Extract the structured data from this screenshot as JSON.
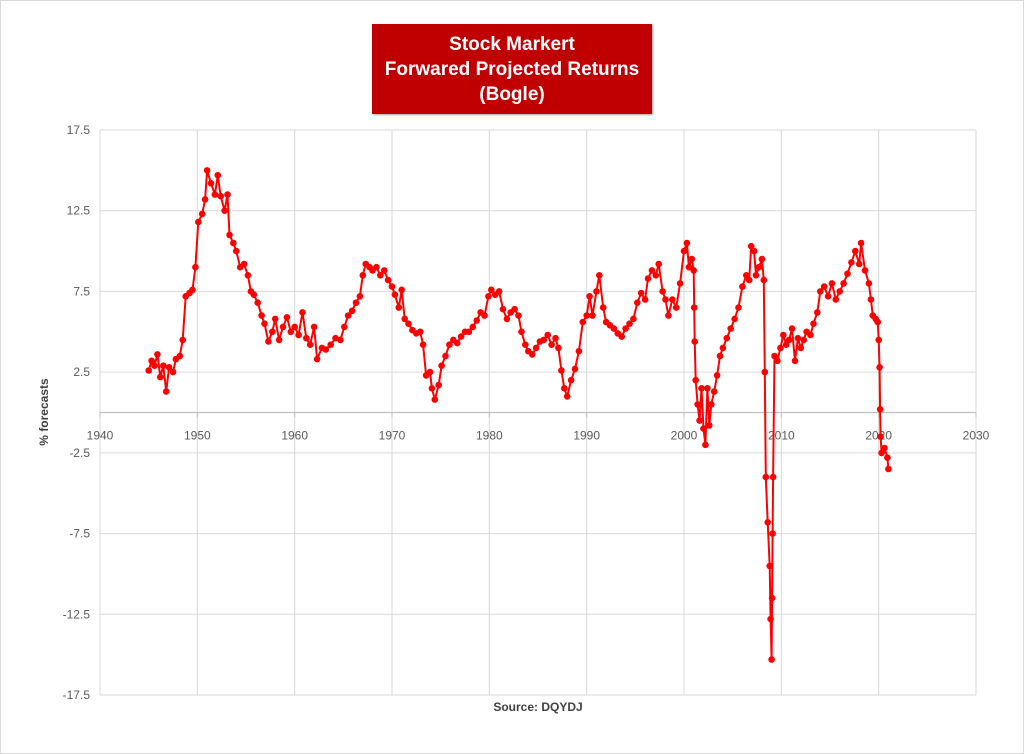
{
  "chart_data": {
    "type": "line",
    "title_lines": [
      "Stock Markert",
      "Forwared Projected Returns",
      "(Bogle)"
    ],
    "xlabel": "Source: DQYDJ",
    "ylabel": "% forecasts",
    "xlim": [
      1940,
      2030
    ],
    "ylim": [
      -17.5,
      17.5
    ],
    "xticks": [
      1940,
      1950,
      1960,
      1970,
      1980,
      1990,
      2000,
      2010,
      2020,
      2030
    ],
    "yticks": [
      -17.5,
      -12.5,
      -7.5,
      -2.5,
      2.5,
      7.5,
      12.5,
      17.5
    ],
    "grid": true,
    "series": [
      {
        "color": "#ff0000",
        "points": [
          [
            1945.0,
            2.6
          ],
          [
            1945.3,
            3.2
          ],
          [
            1945.6,
            2.9
          ],
          [
            1945.9,
            3.6
          ],
          [
            1946.2,
            2.2
          ],
          [
            1946.5,
            2.9
          ],
          [
            1946.8,
            1.3
          ],
          [
            1947.1,
            2.8
          ],
          [
            1947.5,
            2.5
          ],
          [
            1947.8,
            3.3
          ],
          [
            1948.2,
            3.5
          ],
          [
            1948.5,
            4.5
          ],
          [
            1948.8,
            7.2
          ],
          [
            1949.2,
            7.4
          ],
          [
            1949.5,
            7.6
          ],
          [
            1949.8,
            9.0
          ],
          [
            1950.1,
            11.8
          ],
          [
            1950.5,
            12.3
          ],
          [
            1950.8,
            13.2
          ],
          [
            1951.0,
            15.0
          ],
          [
            1951.4,
            14.2
          ],
          [
            1951.8,
            13.5
          ],
          [
            1952.1,
            14.7
          ],
          [
            1952.4,
            13.4
          ],
          [
            1952.8,
            12.5
          ],
          [
            1953.1,
            13.5
          ],
          [
            1953.3,
            11.0
          ],
          [
            1953.7,
            10.5
          ],
          [
            1954.0,
            10.0
          ],
          [
            1954.4,
            9.0
          ],
          [
            1954.8,
            9.2
          ],
          [
            1955.2,
            8.5
          ],
          [
            1955.5,
            7.5
          ],
          [
            1955.8,
            7.3
          ],
          [
            1956.2,
            6.8
          ],
          [
            1956.6,
            6.0
          ],
          [
            1956.9,
            5.5
          ],
          [
            1957.3,
            4.4
          ],
          [
            1957.7,
            5.0
          ],
          [
            1958.0,
            5.8
          ],
          [
            1958.4,
            4.5
          ],
          [
            1958.8,
            5.3
          ],
          [
            1959.2,
            5.9
          ],
          [
            1959.6,
            5.0
          ],
          [
            1960.0,
            5.3
          ],
          [
            1960.4,
            4.8
          ],
          [
            1960.8,
            6.2
          ],
          [
            1961.2,
            4.6
          ],
          [
            1961.6,
            4.2
          ],
          [
            1962.0,
            5.3
          ],
          [
            1962.3,
            3.3
          ],
          [
            1962.8,
            4.0
          ],
          [
            1963.2,
            3.9
          ],
          [
            1963.7,
            4.2
          ],
          [
            1964.2,
            4.6
          ],
          [
            1964.7,
            4.5
          ],
          [
            1965.1,
            5.3
          ],
          [
            1965.5,
            6.0
          ],
          [
            1965.9,
            6.3
          ],
          [
            1966.3,
            6.8
          ],
          [
            1966.7,
            7.2
          ],
          [
            1967.0,
            8.5
          ],
          [
            1967.3,
            9.2
          ],
          [
            1967.7,
            9.0
          ],
          [
            1968.0,
            8.8
          ],
          [
            1968.4,
            9.0
          ],
          [
            1968.8,
            8.5
          ],
          [
            1969.2,
            8.8
          ],
          [
            1969.6,
            8.2
          ],
          [
            1970.0,
            7.8
          ],
          [
            1970.3,
            7.3
          ],
          [
            1970.7,
            6.5
          ],
          [
            1971.0,
            7.6
          ],
          [
            1971.3,
            5.8
          ],
          [
            1971.7,
            5.5
          ],
          [
            1972.1,
            5.1
          ],
          [
            1972.5,
            4.9
          ],
          [
            1972.9,
            5.0
          ],
          [
            1973.2,
            4.2
          ],
          [
            1973.5,
            2.3
          ],
          [
            1973.9,
            2.5
          ],
          [
            1974.1,
            1.5
          ],
          [
            1974.4,
            0.8
          ],
          [
            1974.8,
            1.7
          ],
          [
            1975.1,
            2.9
          ],
          [
            1975.5,
            3.5
          ],
          [
            1975.9,
            4.2
          ],
          [
            1976.3,
            4.5
          ],
          [
            1976.7,
            4.3
          ],
          [
            1977.1,
            4.7
          ],
          [
            1977.5,
            5.0
          ],
          [
            1977.9,
            5.0
          ],
          [
            1978.3,
            5.3
          ],
          [
            1978.7,
            5.7
          ],
          [
            1979.1,
            6.2
          ],
          [
            1979.5,
            6.0
          ],
          [
            1979.9,
            7.2
          ],
          [
            1980.2,
            7.6
          ],
          [
            1980.6,
            7.3
          ],
          [
            1981.0,
            7.5
          ],
          [
            1981.4,
            6.4
          ],
          [
            1981.8,
            5.8
          ],
          [
            1982.2,
            6.2
          ],
          [
            1982.6,
            6.4
          ],
          [
            1983.0,
            6.0
          ],
          [
            1983.3,
            5.0
          ],
          [
            1983.7,
            4.2
          ],
          [
            1984.0,
            3.8
          ],
          [
            1984.4,
            3.6
          ],
          [
            1984.8,
            4.0
          ],
          [
            1985.2,
            4.4
          ],
          [
            1985.6,
            4.5
          ],
          [
            1986.0,
            4.8
          ],
          [
            1986.4,
            4.2
          ],
          [
            1986.8,
            4.6
          ],
          [
            1987.1,
            4.0
          ],
          [
            1987.4,
            2.6
          ],
          [
            1987.7,
            1.5
          ],
          [
            1988.0,
            1.0
          ],
          [
            1988.4,
            2.0
          ],
          [
            1988.8,
            2.7
          ],
          [
            1989.2,
            3.8
          ],
          [
            1989.6,
            5.6
          ],
          [
            1990.0,
            6.0
          ],
          [
            1990.3,
            7.2
          ],
          [
            1990.6,
            6.0
          ],
          [
            1991.0,
            7.5
          ],
          [
            1991.3,
            8.5
          ],
          [
            1991.7,
            6.5
          ],
          [
            1992.0,
            5.6
          ],
          [
            1992.4,
            5.4
          ],
          [
            1992.8,
            5.2
          ],
          [
            1993.2,
            4.9
          ],
          [
            1993.6,
            4.7
          ],
          [
            1994.0,
            5.2
          ],
          [
            1994.4,
            5.5
          ],
          [
            1994.8,
            5.8
          ],
          [
            1995.2,
            6.8
          ],
          [
            1995.6,
            7.4
          ],
          [
            1996.0,
            7.0
          ],
          [
            1996.3,
            8.3
          ],
          [
            1996.7,
            8.8
          ],
          [
            1997.1,
            8.5
          ],
          [
            1997.4,
            9.2
          ],
          [
            1997.8,
            7.5
          ],
          [
            1998.1,
            7.0
          ],
          [
            1998.4,
            6.0
          ],
          [
            1998.8,
            7.0
          ],
          [
            1999.2,
            6.5
          ],
          [
            1999.6,
            8.0
          ],
          [
            2000.0,
            10.0
          ],
          [
            2000.3,
            10.5
          ],
          [
            2000.5,
            9.0
          ],
          [
            2000.8,
            9.5
          ],
          [
            2001.0,
            8.8
          ],
          [
            2001.05,
            6.5
          ],
          [
            2001.1,
            4.4
          ],
          [
            2001.2,
            2.0
          ],
          [
            2001.4,
            0.5
          ],
          [
            2001.6,
            -0.5
          ],
          [
            2001.8,
            1.5
          ],
          [
            2002.0,
            -1.0
          ],
          [
            2002.2,
            -2.0
          ],
          [
            2002.4,
            1.5
          ],
          [
            2002.6,
            -0.8
          ],
          [
            2002.8,
            0.5
          ],
          [
            2003.1,
            1.3
          ],
          [
            2003.4,
            2.3
          ],
          [
            2003.7,
            3.5
          ],
          [
            2004.0,
            4.0
          ],
          [
            2004.4,
            4.6
          ],
          [
            2004.8,
            5.2
          ],
          [
            2005.2,
            5.8
          ],
          [
            2005.6,
            6.5
          ],
          [
            2006.0,
            7.8
          ],
          [
            2006.4,
            8.5
          ],
          [
            2006.7,
            8.2
          ],
          [
            2006.9,
            10.3
          ],
          [
            2007.2,
            10.0
          ],
          [
            2007.4,
            8.5
          ],
          [
            2007.7,
            9.0
          ],
          [
            2008.0,
            9.5
          ],
          [
            2008.2,
            8.2
          ],
          [
            2008.3,
            2.5
          ],
          [
            2008.4,
            -4.0
          ],
          [
            2008.6,
            -6.8
          ],
          [
            2008.8,
            -9.5
          ],
          [
            2008.9,
            -12.8
          ],
          [
            2009.0,
            -15.3
          ],
          [
            2009.05,
            -11.5
          ],
          [
            2009.1,
            -7.5
          ],
          [
            2009.15,
            -4.0
          ],
          [
            2009.3,
            3.5
          ],
          [
            2009.6,
            3.2
          ],
          [
            2009.9,
            4.0
          ],
          [
            2010.2,
            4.8
          ],
          [
            2010.5,
            4.2
          ],
          [
            2010.8,
            4.5
          ],
          [
            2011.1,
            5.2
          ],
          [
            2011.4,
            3.2
          ],
          [
            2011.7,
            4.6
          ],
          [
            2012.0,
            4.0
          ],
          [
            2012.3,
            4.5
          ],
          [
            2012.6,
            5.0
          ],
          [
            2013.0,
            4.8
          ],
          [
            2013.3,
            5.5
          ],
          [
            2013.7,
            6.2
          ],
          [
            2014.0,
            7.5
          ],
          [
            2014.4,
            7.8
          ],
          [
            2014.8,
            7.2
          ],
          [
            2015.2,
            8.0
          ],
          [
            2015.6,
            7.0
          ],
          [
            2016.0,
            7.5
          ],
          [
            2016.4,
            8.0
          ],
          [
            2016.8,
            8.6
          ],
          [
            2017.2,
            9.3
          ],
          [
            2017.6,
            10.0
          ],
          [
            2018.0,
            9.2
          ],
          [
            2018.2,
            10.5
          ],
          [
            2018.6,
            8.8
          ],
          [
            2019.0,
            8.0
          ],
          [
            2019.2,
            7.0
          ],
          [
            2019.4,
            6.0
          ],
          [
            2019.7,
            5.8
          ],
          [
            2019.9,
            5.6
          ],
          [
            2020.0,
            4.5
          ],
          [
            2020.1,
            2.8
          ],
          [
            2020.15,
            0.2
          ],
          [
            2020.2,
            -1.5
          ],
          [
            2020.3,
            -2.5
          ],
          [
            2020.6,
            -2.2
          ],
          [
            2020.9,
            -2.8
          ],
          [
            2021.0,
            -3.5
          ]
        ]
      }
    ]
  }
}
